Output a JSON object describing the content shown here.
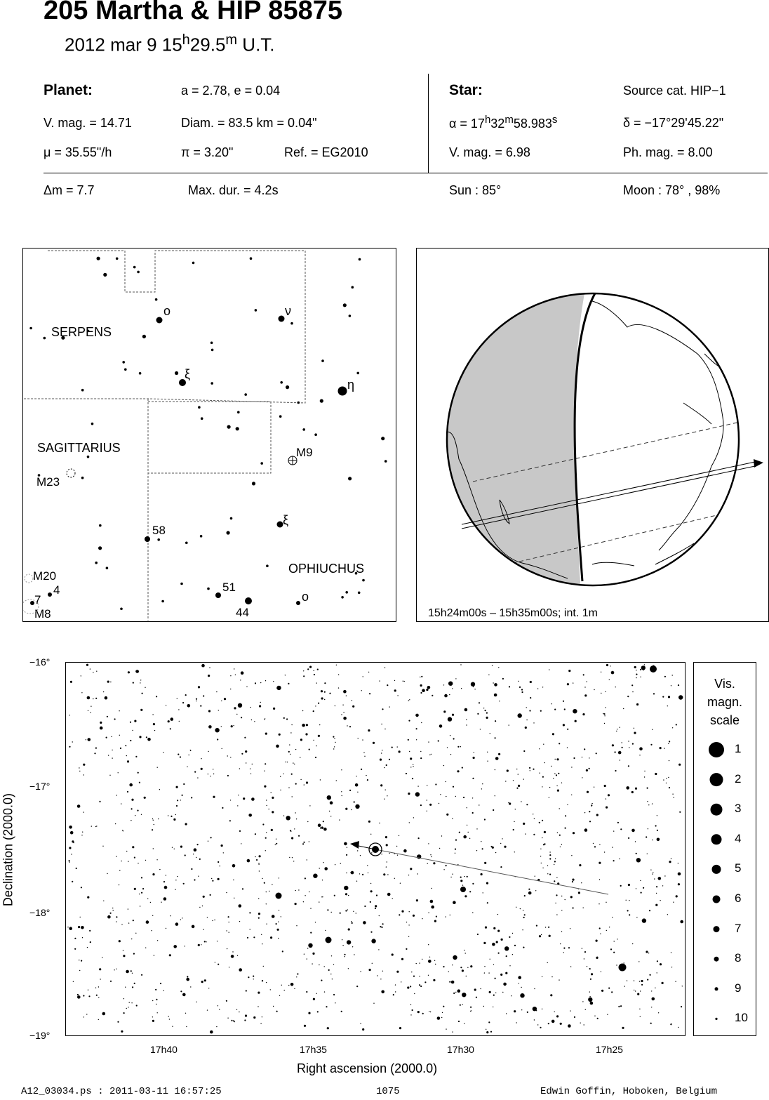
{
  "header": {
    "title": "205 Martha  &  HIP 85875",
    "date_prefix": "2012 mar  9  15",
    "date_h": "h",
    "date_mid": "29.5",
    "date_m": "m",
    "date_suffix": " U.T."
  },
  "planet": {
    "label": "Planet:",
    "orbit": "a = 2.78, e = 0.04",
    "vmag": "V. mag. = 14.71",
    "diam": "Diam. = 83.5 km = 0.04\"",
    "mu": "μ =  35.55\"/h",
    "pi": "π =  3.20\"",
    "ref": "Ref. = EG2010"
  },
  "star": {
    "label": "Star:",
    "source": "Source cat.  HIP−1",
    "alpha_prefix": "α = 17",
    "alpha_h": "h",
    "alpha_mid": "32",
    "alpha_m": "m",
    "alpha_sec": "58.983",
    "alpha_s": "s",
    "delta": "δ = −17°29'45.22\"",
    "vmag": "V. mag. =  6.98",
    "phmag": "Ph. mag. =  8.00"
  },
  "event": {
    "dm": "Δm = 7.7",
    "maxdur": "Max. dur. = 4.2s",
    "sun": "Sun :  85°",
    "moon": "Moon :  78° , 98%"
  },
  "constellation_map": {
    "labels": [
      "SERPENS",
      "SAGITTARIUS",
      "OPHIUCHUS"
    ],
    "star_labels": [
      "ο",
      "ν",
      "ξ",
      "η",
      "M9",
      "M23",
      "ξ",
      "58",
      "M20",
      "4",
      "7",
      "M8",
      "51",
      "44",
      "ο"
    ]
  },
  "globe": {
    "caption": "15h24m00s – 15h35m00s; int.  1m"
  },
  "starchart": {
    "y_ticks": [
      "−16°",
      "−17°",
      "−18°",
      "−19°"
    ],
    "x_ticks": [
      "17h40",
      "17h35",
      "17h30",
      "17h25"
    ],
    "xlabel": "Right ascension (2000.0)",
    "ylabel": "Declination (2000.0)"
  },
  "legend": {
    "title_line1": "Vis.",
    "title_line2": "magn.",
    "title_line3": "scale",
    "items": [
      "1",
      "2",
      "3",
      "4",
      "5",
      "6",
      "7",
      "8",
      "9",
      "10"
    ]
  },
  "footer": {
    "left": "A12_03034.ps : 2011-03-11 16:57:25",
    "center": "1075",
    "right": "Edwin Goffin, Hoboken, Belgium"
  }
}
